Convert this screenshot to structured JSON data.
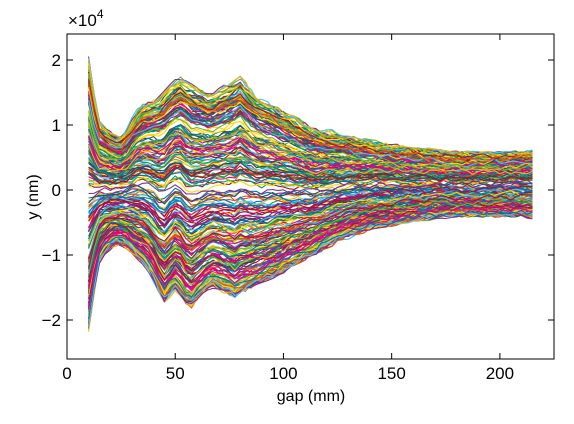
{
  "chart_data": {
    "type": "line",
    "title": "",
    "xlabel": "gap (mm)",
    "ylabel": "y (nm)",
    "y_exponent_label": "×10",
    "y_exponent_power": "4",
    "xlim": [
      0,
      225
    ],
    "ylim": [
      -26000,
      24000
    ],
    "xticks": [
      0,
      50,
      100,
      150,
      200
    ],
    "xtick_labels": [
      "0",
      "50",
      "100",
      "150",
      "200"
    ],
    "yticks": [
      -20000,
      -10000,
      0,
      10000,
      20000
    ],
    "ytick_labels": [
      "−2",
      "−1",
      "0",
      "1",
      "2"
    ],
    "grid": false,
    "legend": "none",
    "colors": [
      "#0072BD",
      "#D95319",
      "#EDB120",
      "#7E2F8E",
      "#77AC30",
      "#4DBEEE",
      "#A2142F",
      "#E6007E",
      "#2F4F4F",
      "#009E73",
      "#FFD700"
    ],
    "x": [
      10,
      12.5,
      15,
      17.5,
      20,
      22.5,
      25,
      27.5,
      30,
      32.5,
      35,
      37.5,
      40,
      42.5,
      45,
      47.5,
      50,
      52.5,
      55,
      57.5,
      60,
      62.5,
      65,
      67.5,
      70,
      72.5,
      75,
      77.5,
      80,
      82.5,
      85,
      87.5,
      90,
      92.5,
      95,
      97.5,
      100,
      102.5,
      105,
      107.5,
      110,
      112.5,
      115,
      117.5,
      120,
      122.5,
      125,
      127.5,
      130,
      132.5,
      135,
      137.5,
      140,
      142.5,
      145,
      147.5,
      150,
      152.5,
      155,
      157.5,
      160,
      162.5,
      165,
      167.5,
      170,
      172.5,
      175,
      177.5,
      180,
      182.5,
      185,
      187.5,
      190,
      192.5,
      195,
      197.5,
      200,
      202.5,
      205,
      207.5,
      210,
      212.5,
      215
    ],
    "envelope": {
      "upper": [
        22000,
        16000,
        11500,
        10500,
        9500,
        9000,
        9000,
        10000,
        11500,
        13000,
        14000,
        14500,
        15000,
        15500,
        16500,
        17500,
        18000,
        18500,
        18000,
        17500,
        17000,
        16500,
        16000,
        16000,
        16500,
        17000,
        17500,
        18000,
        18500,
        17500,
        16500,
        15500,
        15000,
        14500,
        14000,
        13500,
        13000,
        12500,
        12000,
        11500,
        11000,
        10500,
        10000,
        9800,
        9600,
        9400,
        9200,
        9000,
        8800,
        8600,
        8400,
        8200,
        8000,
        7800,
        7600,
        7400,
        7200,
        7100,
        7000,
        6900,
        6800,
        6700,
        6600,
        6500,
        6400,
        6300,
        6200,
        6100,
        6000,
        6000,
        6000,
        6000,
        6000,
        6000,
        6000,
        6000,
        6000,
        6000,
        6000,
        6000,
        6100,
        6200,
        6300
      ],
      "lower": [
        -23500,
        -17000,
        -12000,
        -10500,
        -9500,
        -9000,
        -9000,
        -9500,
        -10500,
        -11500,
        -12500,
        -13500,
        -15000,
        -17000,
        -18500,
        -17500,
        -16500,
        -17500,
        -19000,
        -19500,
        -18500,
        -17500,
        -16500,
        -16000,
        -16500,
        -17000,
        -17500,
        -18000,
        -17500,
        -17000,
        -16500,
        -16000,
        -15500,
        -15000,
        -14500,
        -14000,
        -13500,
        -13000,
        -12500,
        -12000,
        -11500,
        -11000,
        -10500,
        -10000,
        -9500,
        -9000,
        -8500,
        -8000,
        -7700,
        -7400,
        -7100,
        -6800,
        -6500,
        -6300,
        -6100,
        -5900,
        -5700,
        -5500,
        -5300,
        -5100,
        -5000,
        -4900,
        -4800,
        -4700,
        -4600,
        -4500,
        -4400,
        -4300,
        -4200,
        -4200,
        -4200,
        -4200,
        -4200,
        -4200,
        -4200,
        -4200,
        -4200,
        -4200,
        -4200,
        -4200,
        -4300,
        -4400,
        -4500
      ]
    },
    "series_count": 260,
    "noise_amplitude": 900
  }
}
